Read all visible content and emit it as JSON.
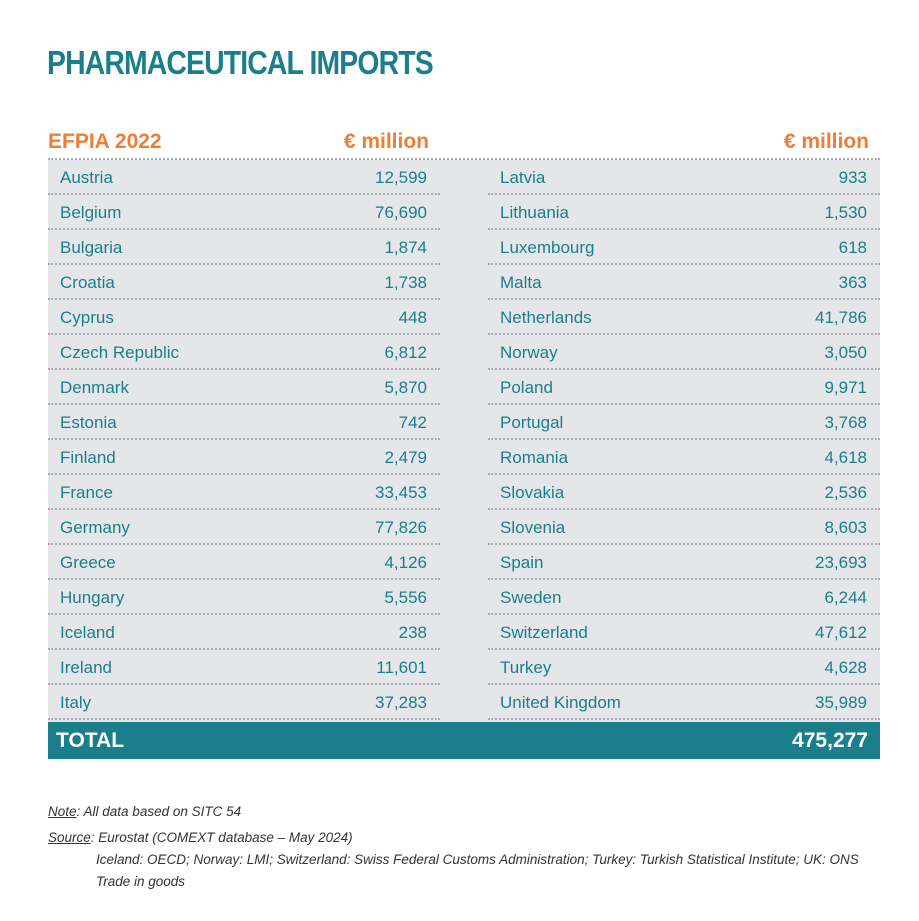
{
  "title": "PHARMACEUTICAL IMPORTS",
  "header": {
    "left_label": "EFPIA 2022",
    "unit_left": "€ million",
    "unit_right": "€ million"
  },
  "left_rows": [
    {
      "country": "Austria",
      "value": "12,599"
    },
    {
      "country": "Belgium",
      "value": "76,690"
    },
    {
      "country": "Bulgaria",
      "value": "1,874"
    },
    {
      "country": "Croatia",
      "value": "1,738"
    },
    {
      "country": "Cyprus",
      "value": "448"
    },
    {
      "country": "Czech Republic",
      "value": "6,812"
    },
    {
      "country": "Denmark",
      "value": "5,870"
    },
    {
      "country": "Estonia",
      "value": "742"
    },
    {
      "country": "Finland",
      "value": "2,479"
    },
    {
      "country": "France",
      "value": "33,453"
    },
    {
      "country": "Germany",
      "value": "77,826"
    },
    {
      "country": "Greece",
      "value": "4,126"
    },
    {
      "country": "Hungary",
      "value": "5,556"
    },
    {
      "country": "Iceland",
      "value": "238"
    },
    {
      "country": "Ireland",
      "value": "11,601"
    },
    {
      "country": "Italy",
      "value": "37,283"
    }
  ],
  "right_rows": [
    {
      "country": "Latvia",
      "value": "933"
    },
    {
      "country": "Lithuania",
      "value": "1,530"
    },
    {
      "country": "Luxembourg",
      "value": "618"
    },
    {
      "country": "Malta",
      "value": "363"
    },
    {
      "country": "Netherlands",
      "value": "41,786"
    },
    {
      "country": "Norway",
      "value": "3,050"
    },
    {
      "country": "Poland",
      "value": "9,971"
    },
    {
      "country": "Portugal",
      "value": "3,768"
    },
    {
      "country": "Romania",
      "value": "4,618"
    },
    {
      "country": "Slovakia",
      "value": "2,536"
    },
    {
      "country": "Slovenia",
      "value": "8,603"
    },
    {
      "country": "Spain",
      "value": "23,693"
    },
    {
      "country": "Sweden",
      "value": "6,244"
    },
    {
      "country": "Switzerland",
      "value": "47,612"
    },
    {
      "country": "Turkey",
      "value": "4,628"
    },
    {
      "country": "United Kingdom",
      "value": "35,989"
    }
  ],
  "total": {
    "label": "TOTAL",
    "value": "475,277"
  },
  "notes": {
    "note_label": "Note",
    "note_text": ": All data based on SITC 54",
    "source_label": "Source",
    "source_text": ": Eurostat (COMEXT database – May 2024)",
    "source_line2": "Iceland: OECD; Norway: LMI; Switzerland: Swiss Federal Customs Administration; Turkey: Turkish Statistical Institute; UK: ONS",
    "source_line3": "Trade in goods"
  },
  "colors": {
    "teal": "#1a7f8a",
    "orange": "#ef7d35",
    "row_bg": "#e4e6ea"
  }
}
